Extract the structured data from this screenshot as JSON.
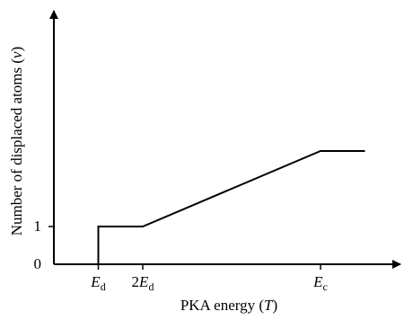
{
  "chart_data": {
    "type": "line",
    "title": "",
    "xlabel": "PKA energy (T)",
    "xlabel_parts": {
      "main": "PKA energy (",
      "var": "T",
      "close": ")"
    },
    "ylabel": "Number of displaced atoms (ν)",
    "ylabel_parts": {
      "main": "Number of displaced atoms (",
      "var": "ν",
      "close": ")"
    },
    "x_ticks": [
      {
        "pos": 1,
        "text": "E_d",
        "prefix": "",
        "var": "E",
        "sub": "d"
      },
      {
        "pos": 2,
        "text": "2E_d",
        "prefix": "2",
        "var": "E",
        "sub": "d"
      },
      {
        "pos": 6,
        "text": "E_c",
        "prefix": "",
        "var": "E",
        "sub": "c"
      }
    ],
    "y_ticks": [
      {
        "value": 0,
        "text": "0"
      },
      {
        "value": 1,
        "text": "1"
      }
    ],
    "series": [
      {
        "x": [
          1,
          1,
          2,
          6,
          7
        ],
        "y": [
          0,
          1,
          1,
          3,
          3
        ]
      }
    ],
    "xlim": [
      0,
      8
    ],
    "ylim": [
      0,
      4.5
    ],
    "grid": false
  }
}
